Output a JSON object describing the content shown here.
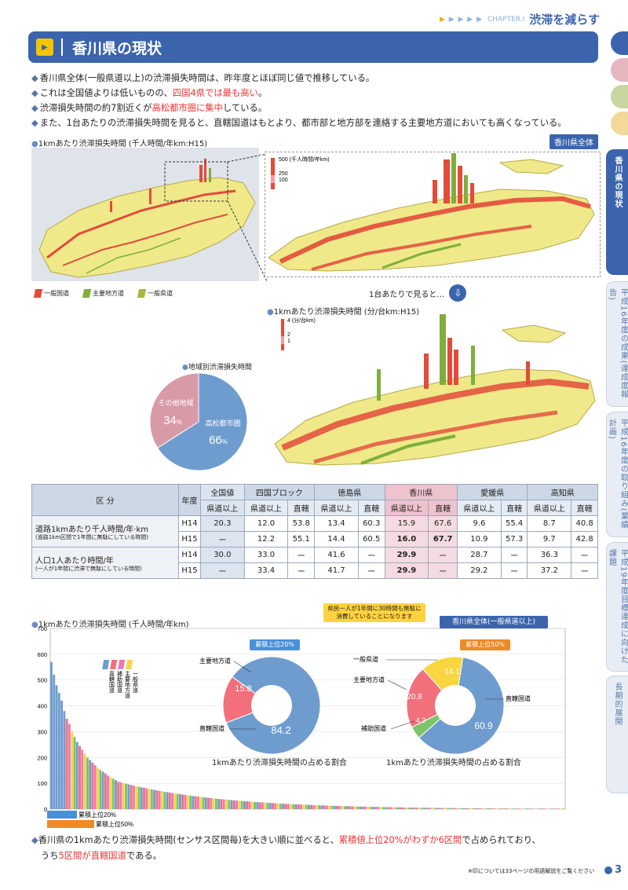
{
  "chapter": {
    "label": "CHAPTER.Ⅰ",
    "title": "渋滞を減らす"
  },
  "page_title": "香川県の現状",
  "bullets": [
    {
      "pre": "香川県全体(一般県道以上)の渋滞損失時間は、昨年度とほぼ同じ値で推移している。",
      "hl": "",
      "post": ""
    },
    {
      "pre": "これは全国値よりは低いものの、",
      "hl": "四国4県では最も高い",
      "post": "。"
    },
    {
      "pre": "渋滞損失時間の約7割近くが",
      "hl": "高松都市圏に集中",
      "post": "している。"
    },
    {
      "pre": "また、1台あたりの渋滞損失時間を見ると、直轄国道はもとより、都市部と地方部を連絡する主要地方道においても高くなっている。",
      "hl": "",
      "post": ""
    }
  ],
  "map1": {
    "title": "1kmあたり渋滞損失時間 (千人時間/年km:H15)",
    "tag": "香川県全体",
    "scale_labels": [
      "500 (千人時間/年km)",
      "250",
      "100"
    ]
  },
  "legend": [
    "一般国道",
    "主要地方道",
    "一般県道"
  ],
  "one_car": "1台あたりで見ると…",
  "map2": {
    "title": "1kmあたり渋滞損失時間 (分/台km:H15)",
    "scale_labels": [
      "4 (分/台km)",
      "2",
      "1"
    ]
  },
  "pie1": {
    "title": "地域別渋滞損失時間",
    "slices": [
      {
        "label": "高松都市圏",
        "pct": "66",
        "unit": "%",
        "value": 66,
        "color": "#6e9ccf"
      },
      {
        "label": "その他地域",
        "pct": "34",
        "unit": "%",
        "value": 34,
        "color": "#d99aa7"
      }
    ]
  },
  "table": {
    "col_kubun": "区 分",
    "col_year": "年度",
    "groups": [
      "全国値",
      "四国ブロック",
      "徳島県",
      "香川県",
      "愛媛県",
      "高知県"
    ],
    "sub": [
      "県道以上",
      "県道以上",
      "直轄",
      "県道以上",
      "直轄",
      "県道以上",
      "直轄",
      "県道以上",
      "直轄",
      "県道以上",
      "直轄"
    ],
    "r1_label": "道路1kmあたり千人時間/年·km",
    "r1_note": "(道路1km区間で1年間に無駄にしている時間)",
    "r2_label": "人口1人あたり時間/年",
    "r2_note": "(一人が1年間に渋滞で無駄にしている時間)",
    "rows": [
      {
        "year": "H14",
        "vals": [
          "20.3",
          "12.0",
          "53.8",
          "13.4",
          "60.3",
          "15.9",
          "67.6",
          "9.6",
          "55.4",
          "8.7",
          "40.8"
        ]
      },
      {
        "year": "H15",
        "vals": [
          "ー",
          "12.2",
          "55.1",
          "14.4",
          "60.5",
          "16.0",
          "67.7",
          "10.9",
          "57.3",
          "9.7",
          "42.8"
        ]
      },
      {
        "year": "H14",
        "vals": [
          "30.0",
          "33.0",
          "ー",
          "41.6",
          "ー",
          "29.9",
          "ー",
          "28.7",
          "ー",
          "36.3",
          "ー"
        ]
      },
      {
        "year": "H15",
        "vals": [
          "ー",
          "33.4",
          "ー",
          "41.7",
          "ー",
          "29.9",
          "ー",
          "29.2",
          "ー",
          "37.2",
          "ー"
        ]
      }
    ],
    "callout": "県民一人が1年間に30時間も無駄に消費していることになります"
  },
  "chart_data": {
    "type": "bar",
    "title": "1kmあたり渋滞損失時間 (千人時間/年km)",
    "ylim": [
      0,
      700
    ],
    "yticks": [
      "0",
      "100",
      "200",
      "300",
      "400",
      "500",
      "600",
      "700"
    ],
    "legend": [
      "直轄国道",
      "補助国道",
      "主要地方道",
      "一般県道"
    ],
    "top_values": [
      570,
      520,
      480,
      450,
      420,
      380,
      350,
      330,
      300,
      280,
      260,
      245,
      230,
      215,
      200,
      190,
      180,
      170,
      160,
      152,
      145,
      138,
      130,
      124,
      118,
      112,
      106
    ],
    "cum20": "累積上位20%",
    "cum50": "累積上位50%",
    "box_tag": "香川県全体(一般県道以上)",
    "donut1": {
      "badge": "累積上位20%",
      "caption": "1kmあたり渋滞損失時間の占める割合",
      "slices": [
        {
          "label": "直轄国道",
          "value": 84.2,
          "pct": "84.2",
          "color": "#6e9ccf"
        },
        {
          "label": "主要地方道",
          "value": 15.8,
          "pct": "15.8",
          "color": "#f26f7c"
        }
      ]
    },
    "donut2": {
      "badge": "累積上位50%",
      "caption": "1kmあたり渋滞損失時間の占める割合",
      "slices": [
        {
          "label": "直轄国道",
          "value": 60.9,
          "pct": "60.9",
          "color": "#6e9ccf"
        },
        {
          "label": "補助国道",
          "value": 4.2,
          "pct": "4.2",
          "color": "#7cc36a"
        },
        {
          "label": "主要地方道",
          "value": 20.8,
          "pct": "20.8",
          "color": "#f26f7c"
        },
        {
          "label": "一般県道",
          "value": 14.1,
          "pct": "14.1",
          "color": "#f7d640"
        }
      ]
    }
  },
  "bottom": {
    "l1_pre": "香川県の1kmあたり渋滞損失時間(センサス区間毎)を大きい順に並べると、",
    "l1_hl": "累積値上位20%がわずか6区間",
    "l1_post": "で占められており、",
    "l2_pre": "うち",
    "l2_hl": "5区間が直轄国道",
    "l2_post": "である。"
  },
  "footnote": "※印については33ページの用語解説をご覧ください",
  "page_number": "3",
  "side_tabs": [
    "香川県の現状",
    "平成16年度の成果(達成度報告)",
    "平成16年度の取り組み(業績計画)",
    "平成19年度目標達成に向けた課題",
    "長期的展開"
  ]
}
